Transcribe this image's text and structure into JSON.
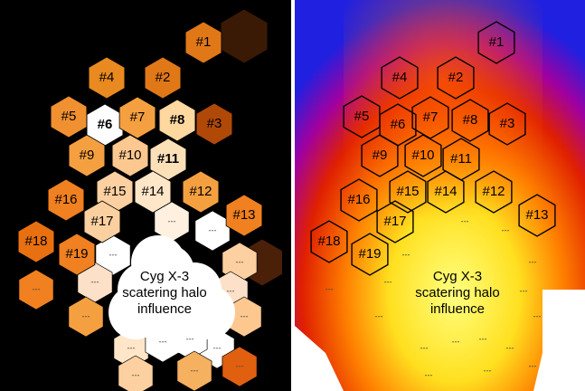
{
  "panels": [
    {
      "cells": [
        "#1",
        "#2",
        "#3",
        "#4",
        "#5",
        "#6",
        "#7",
        "#8",
        "#9",
        "#10",
        "#11",
        "#12",
        "#13",
        "#14",
        "#15",
        "#16",
        "#17",
        "#18",
        "#19"
      ],
      "halo_label": [
        "Cyg X-3",
        "scatering halo",
        "influence"
      ],
      "dashes": [
        "---",
        "---",
        "---",
        "---",
        "---",
        "---",
        "---",
        "---",
        "---",
        "---",
        "---",
        "---",
        "---",
        "---",
        "---",
        "---"
      ]
    },
    {
      "cells": [
        "#1",
        "#2",
        "#3",
        "#4",
        "#5",
        "#6",
        "#7",
        "#8",
        "#9",
        "#10",
        "#11",
        "#12",
        "#13",
        "#14",
        "#15",
        "#16",
        "#17",
        "#18",
        "#19"
      ],
      "halo_label": [
        "Cyg X-3",
        "scatering halo",
        "influence"
      ],
      "dashes": [
        "---",
        "---",
        "---",
        "---",
        "---",
        "---",
        "---",
        "---",
        "---",
        "---",
        "---",
        "---",
        "---",
        "---",
        "---",
        "---"
      ]
    }
  ]
}
